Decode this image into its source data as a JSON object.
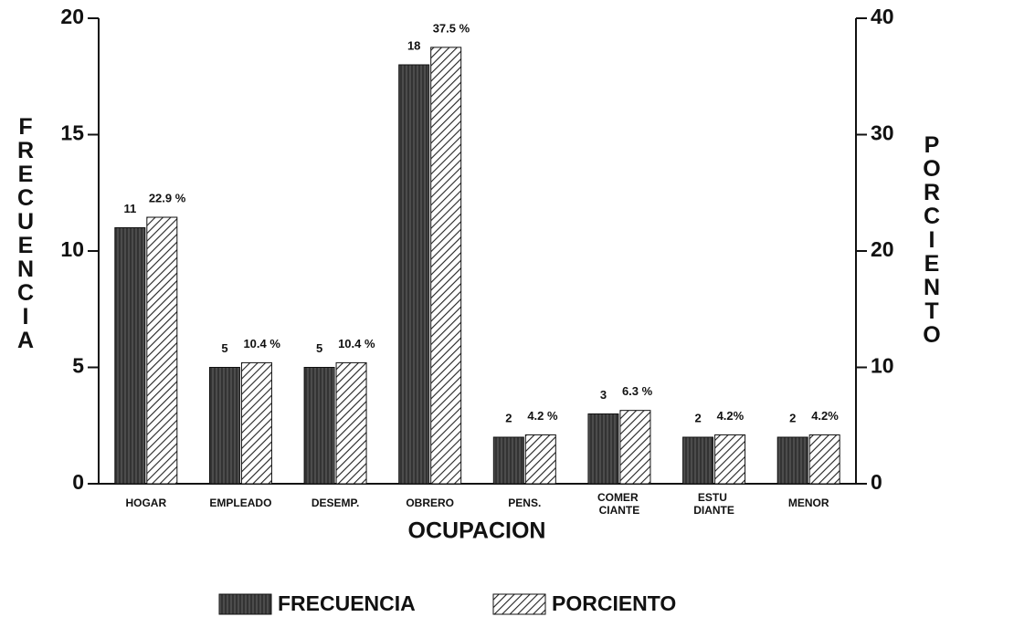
{
  "chart_data": {
    "type": "bar",
    "x_label": "OCUPACION",
    "y_label": "FRECUENCIA",
    "y2_label": "PORCIENTO",
    "categories": [
      "HOGAR",
      "EMPLEADO",
      "DESEMP.",
      "OBRERO",
      "PENS.",
      "COMER CIANTE",
      "ESTU DIANTE",
      "MENOR"
    ],
    "series": [
      {
        "name": "FRECUENCIA",
        "color": "#333333",
        "values": [
          11,
          5,
          5,
          18,
          2,
          3,
          2,
          2
        ]
      },
      {
        "name": "PORCIENTO",
        "color": "#222222",
        "axis": "y2",
        "values": [
          22.9,
          10.4,
          10.4,
          37.5,
          4.2,
          6.3,
          4.2,
          4.2
        ],
        "value_labels": [
          "22.9 %",
          "10.4 %",
          "10.4 %",
          "37.5 %",
          "4.2 %",
          "6.3 %",
          "4.2%",
          "4.2%"
        ]
      }
    ],
    "ylim": [
      0,
      20
    ],
    "yticks": [
      0,
      5,
      10,
      15,
      20
    ],
    "y2lim": [
      0,
      40
    ],
    "y2ticks": [
      0,
      10,
      20,
      30,
      40
    ],
    "legend": "bottom"
  }
}
